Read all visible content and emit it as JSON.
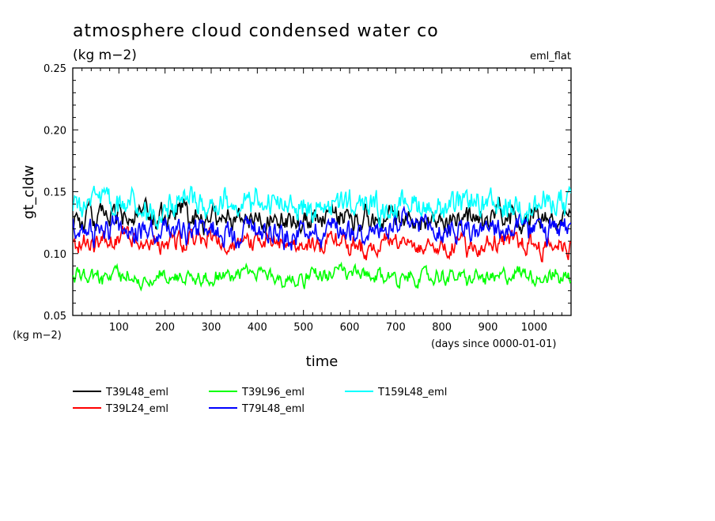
{
  "chart_data": {
    "type": "line",
    "title": "atmosphere cloud condensed water co",
    "units_label": "(kg m−2)",
    "experiment_tag": "eml_flat",
    "ylabel": "gt_cldw",
    "xlabel": "time",
    "x_units_note": "(days since 0000-01-01)",
    "y_units_note": "(kg m−2)",
    "xlim": [
      0,
      1080
    ],
    "ylim": [
      0.05,
      0.25
    ],
    "x_ticks": [
      100,
      200,
      300,
      400,
      500,
      600,
      700,
      800,
      900,
      1000
    ],
    "y_ticks": [
      "0.05",
      "0.10",
      "0.15",
      "0.20",
      "0.25"
    ],
    "grid": false,
    "legend_position": "bottom",
    "series": [
      {
        "name": "T39L48_eml",
        "color": "#000000",
        "x": [
          0,
          60,
          120,
          180,
          240,
          300,
          360,
          420,
          480,
          540,
          600,
          660,
          720,
          780,
          840,
          900,
          960,
          1020,
          1080
        ],
        "values": [
          0.13,
          0.128,
          0.131,
          0.127,
          0.129,
          0.13,
          0.128,
          0.131,
          0.127,
          0.129,
          0.13,
          0.128,
          0.131,
          0.127,
          0.129,
          0.128,
          0.13,
          0.128,
          0.13
        ]
      },
      {
        "name": "T39L24_eml",
        "color": "#ff0000",
        "x": [
          0,
          60,
          120,
          180,
          240,
          300,
          360,
          420,
          480,
          540,
          600,
          660,
          720,
          780,
          840,
          900,
          960,
          1020,
          1080
        ],
        "values": [
          0.11,
          0.108,
          0.111,
          0.107,
          0.109,
          0.11,
          0.108,
          0.111,
          0.106,
          0.108,
          0.11,
          0.107,
          0.111,
          0.108,
          0.109,
          0.107,
          0.11,
          0.108,
          0.109
        ]
      },
      {
        "name": "T39L96_eml",
        "color": "#00ff00",
        "x": [
          0,
          60,
          120,
          180,
          240,
          300,
          360,
          420,
          480,
          540,
          600,
          660,
          720,
          780,
          840,
          900,
          960,
          1020,
          1080
        ],
        "values": [
          0.082,
          0.081,
          0.083,
          0.08,
          0.082,
          0.083,
          0.081,
          0.082,
          0.08,
          0.082,
          0.083,
          0.081,
          0.082,
          0.08,
          0.081,
          0.08,
          0.082,
          0.081,
          0.082
        ]
      },
      {
        "name": "T79L48_eml",
        "color": "#0000ff",
        "x": [
          0,
          60,
          120,
          180,
          240,
          300,
          360,
          420,
          480,
          540,
          600,
          660,
          720,
          780,
          840,
          900,
          960,
          1020,
          1080
        ],
        "values": [
          0.12,
          0.118,
          0.121,
          0.117,
          0.119,
          0.12,
          0.118,
          0.121,
          0.117,
          0.119,
          0.12,
          0.118,
          0.121,
          0.118,
          0.12,
          0.118,
          0.12,
          0.118,
          0.119
        ]
      },
      {
        "name": "T159L48_eml",
        "color": "#00ffff",
        "x": [
          0,
          60,
          120,
          180,
          240,
          300,
          360,
          420,
          480,
          540,
          600,
          660,
          720,
          780,
          840,
          900,
          960,
          1020,
          1080
        ],
        "values": [
          0.14,
          0.138,
          0.141,
          0.137,
          0.139,
          0.14,
          0.139,
          0.142,
          0.137,
          0.139,
          0.14,
          0.138,
          0.141,
          0.138,
          0.139,
          0.138,
          0.14,
          0.139,
          0.14
        ]
      }
    ]
  }
}
